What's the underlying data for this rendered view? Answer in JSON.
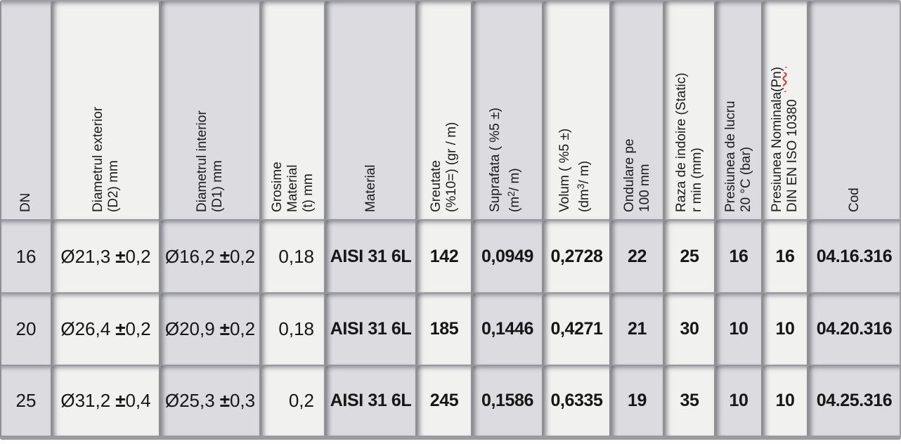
{
  "table": {
    "columns": [
      {
        "id": "dn",
        "lines": [
          "DN"
        ]
      },
      {
        "id": "diametrul-exterior",
        "lines": [
          "Diametrul exterior",
          "(D2) mm"
        ]
      },
      {
        "id": "diametrul-interior",
        "lines": [
          "Diametrul interior",
          "(D1) mm"
        ]
      },
      {
        "id": "grosime-material",
        "lines": [
          "Grosime",
          "Material",
          "(t) mm"
        ]
      },
      {
        "id": "material",
        "lines": [
          "Material"
        ]
      },
      {
        "id": "greutate",
        "lines": [
          "Greutate",
          "(%10=) (gr / m)"
        ]
      },
      {
        "id": "suprafata",
        "lines": [
          "Suprafata ( %5 ±)"
        ],
        "unit_pre": "(m",
        "unit_sup": "2",
        "unit_post": "/ m)"
      },
      {
        "id": "volum",
        "lines": [
          "Volum ( %5 ±)"
        ],
        "unit_pre": "(dm",
        "unit_sup": "3",
        "unit_post": "/ m)"
      },
      {
        "id": "ondulare",
        "lines": [
          "Ondulare pe",
          "100 mm"
        ]
      },
      {
        "id": "raza-indoire",
        "lines": [
          "Raza de indoire (Static)",
          "r min (mm)"
        ]
      },
      {
        "id": "presiunea-lucru",
        "lines": [
          "Presiunea de lucru",
          "20 °C (bar)"
        ]
      },
      {
        "id": "presiunea-nominala",
        "lines": [
          "Presiunea Nominala",
          "DIN EN ISO 10380"
        ],
        "misspelled": "(Pn)"
      },
      {
        "id": "cod",
        "lines": [
          "Cod"
        ]
      }
    ],
    "rows": [
      {
        "dn": "16",
        "d2": "Ø21,3",
        "d2_pm": "±",
        "d2_tol": "0,2",
        "d1": "Ø16,2",
        "d1_pm": "±",
        "d1_tol": "0,2",
        "t": "0,18",
        "material": "AISI 31 6L",
        "greutate": "142",
        "suprafata": "0,0949",
        "volum": "0,2728",
        "ondulare": "22",
        "raza": "25",
        "presiunea_lucru": "16",
        "presiunea_nominala": "16",
        "cod": "04.16.316"
      },
      {
        "dn": "20",
        "d2": "Ø26,4",
        "d2_pm": "±",
        "d2_tol": "0,2",
        "d1": "Ø20,9",
        "d1_pm": "±",
        "d1_tol": "0,2",
        "t": "0,18",
        "material": "AISI 31 6L",
        "greutate": "185",
        "suprafata": "0,1446",
        "volum": "0,4271",
        "ondulare": "21",
        "raza": "30",
        "presiunea_lucru": "10",
        "presiunea_nominala": "10",
        "cod": "04.20.316"
      },
      {
        "dn": "25",
        "d2": "Ø31,2",
        "d2_pm": "±",
        "d2_tol": "0,4",
        "d1": "Ø25,3",
        "d1_pm": "±",
        "d1_tol": "0,3",
        "t": "0,2",
        "material": "AISI 31 6L",
        "greutate": "245",
        "suprafata": "0,1586",
        "volum": "0,6335",
        "ondulare": "19",
        "raza": "35",
        "presiunea_lucru": "10",
        "presiunea_nominala": "10",
        "cod": "04.25.316"
      }
    ]
  }
}
